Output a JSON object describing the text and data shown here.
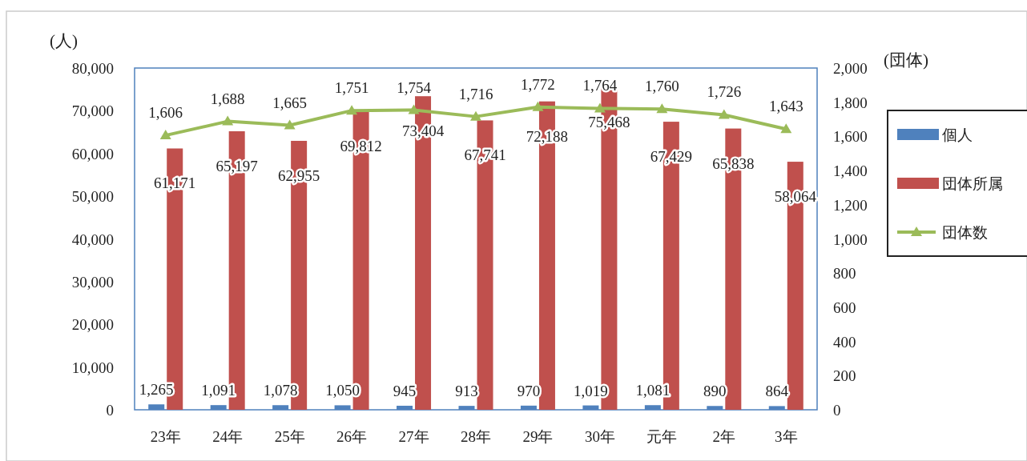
{
  "chart_data": {
    "type": "bar",
    "categories": [
      "23年",
      "24年",
      "25年",
      "26年",
      "27年",
      "28年",
      "29年",
      "30年",
      "元年",
      "2年",
      "3年"
    ],
    "ylabel": "(人)",
    "y2label": "(団体)",
    "ylim": [
      0,
      80000
    ],
    "yticks": [
      0,
      {
        "value": 10000,
        "label": "10,000"
      },
      {
        "value": 20000,
        "label": "20,000"
      },
      {
        "value": 30000,
        "label": "30,000"
      },
      {
        "value": 40000,
        "label": "40,000"
      },
      {
        "value": 50000,
        "label": "50,000"
      },
      {
        "value": 60000,
        "label": "60,000"
      },
      {
        "value": 70000,
        "label": "70,000"
      },
      {
        "value": 80000,
        "label": "80,000"
      }
    ],
    "y2lim": [
      0,
      2000
    ],
    "y2ticks": [
      0,
      200,
      400,
      600,
      800,
      {
        "value": 1000,
        "label": "1,000"
      },
      {
        "value": 1200,
        "label": "1,200"
      },
      {
        "value": 1400,
        "label": "1,400"
      },
      {
        "value": 1600,
        "label": "1,600"
      },
      {
        "value": 1800,
        "label": "1,800"
      },
      {
        "value": 2000,
        "label": "2,000"
      }
    ],
    "series": [
      {
        "name": "個人",
        "color": "#4f81bd",
        "values": [
          1265,
          1091,
          1078,
          1050,
          945,
          913,
          970,
          1019,
          1081,
          890,
          864
        ],
        "value_labels": [
          "1,265",
          "1,091",
          "1,078",
          "1,050",
          "945",
          "913",
          "970",
          "1,019",
          "1,081",
          "890",
          "864"
        ]
      },
      {
        "name": "団体所属",
        "color": "#c0504d",
        "values": [
          61171,
          65197,
          62955,
          69812,
          73404,
          67741,
          72188,
          75468,
          67429,
          65838,
          58064
        ],
        "value_labels": [
          "61,171",
          "65,197",
          "62,955",
          "69,812",
          "73,404",
          "67,741",
          "72,188",
          "75,468",
          "67,429",
          "65,838",
          "58,064"
        ]
      },
      {
        "name": "団体数",
        "type": "line",
        "axis": "y2",
        "color": "#9bbb59",
        "marker": "triangle",
        "values": [
          1606,
          1688,
          1665,
          1751,
          1754,
          1716,
          1772,
          1764,
          1760,
          1726,
          1643
        ],
        "value_labels": [
          "1,606",
          "1,688",
          "1,665",
          "1,751",
          "1,754",
          "1,716",
          "1,772",
          "1,764",
          "1,760",
          "1,726",
          "1,643"
        ]
      }
    ],
    "grid": false,
    "legend": "right"
  }
}
